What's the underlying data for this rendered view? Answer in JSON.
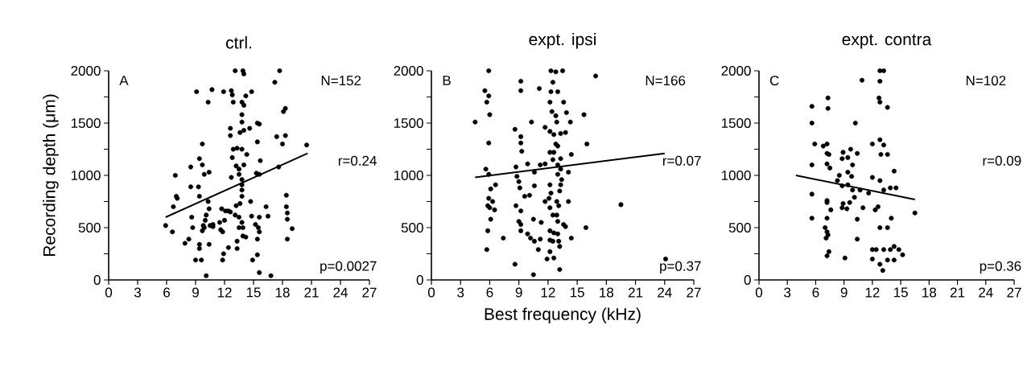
{
  "chart_data": [
    {
      "type": "scatter",
      "title": "ctrl.",
      "ylabel": "Recording depth (μm)",
      "xlim": [
        0,
        27
      ],
      "ylim": [
        0,
        2000
      ],
      "xticks": [
        0,
        3,
        6,
        9,
        12,
        15,
        18,
        21,
        24,
        27
      ],
      "yticks": [
        0,
        {
          "value": 250,
          "label": null
        },
        500,
        {
          "value": 750,
          "label": null
        },
        1000,
        {
          "value": 1250,
          "label": null
        },
        1500,
        {
          "value": 1750,
          "label": null
        },
        2000
      ],
      "marker": "circle",
      "annotations": [
        "A",
        "N=152",
        "r=0.24",
        "p=0.0027"
      ],
      "series": [
        {
          "color": "#000000",
          "x": [
            13.1,
            13.9,
            14.0,
            17.7,
            17.2,
            9.1,
            10.7,
            11.9,
            12.7,
            12.8,
            14.8,
            10.3,
            12.9,
            13.8,
            14.0,
            14.2,
            18.1,
            18.3,
            13.8,
            13.8,
            12.6,
            12.6,
            13.6,
            14.0,
            14.6,
            15.4,
            15.6,
            17.4,
            18.3,
            18.0,
            15.4,
            9.7,
            20.5,
            12.9,
            13.3,
            13.8,
            12.8,
            14.3,
            9.4,
            9.7,
            8.5,
            13.2,
            14.0,
            13.5,
            15.7,
            17.6,
            15.3,
            15.6,
            6.9,
            9.9,
            10.4,
            12.7,
            13.5,
            13.8,
            13.8,
            13.8,
            8.5,
            9.3,
            9.4,
            7.0,
            7.1,
            6.7,
            10.3,
            10.4,
            10.1,
            10.0,
            9.8,
            9.7,
            13.8,
            13.6,
            13.2,
            14.7,
            11.7,
            12.1,
            12.6,
            13.1,
            13.5,
            13.8,
            13.5,
            13.9,
            16.3,
            14.8,
            15.6,
            16.5,
            18.4,
            18.4,
            18.5,
            18.5,
            5.9,
            6.6,
            8.6,
            8.7,
            10.5,
            10.8,
            11.6,
            11.8,
            11.5,
            12.0,
            15.2,
            15.5,
            15.6,
            19.0,
            18.5,
            14.2,
            13.9,
            13.3,
            13.3,
            15.4,
            9.4,
            9.4,
            10.4,
            7.9,
            8.3,
            9.0,
            9.6,
            11.8,
            11.9,
            12.4,
            14.9,
            15.4,
            10.1,
            15.6,
            16.8,
            10.8,
            9.9,
            12.4
          ],
          "values": [
            2000,
            2000,
            1970,
            2000,
            1890,
            1800,
            1820,
            1800,
            1810,
            1770,
            1800,
            1700,
            1700,
            1700,
            1670,
            1760,
            1610,
            1640,
            1580,
            1510,
            1450,
            1380,
            1410,
            1430,
            1450,
            1500,
            1490,
            1370,
            1380,
            1300,
            1320,
            1300,
            1290,
            1250,
            1260,
            1250,
            1170,
            1200,
            1160,
            1100,
            1080,
            1090,
            1100,
            1060,
            1140,
            1080,
            1020,
            1010,
            1000,
            1010,
            1030,
            980,
            1010,
            960,
            910,
            860,
            890,
            890,
            800,
            800,
            780,
            700,
            750,
            680,
            620,
            570,
            520,
            470,
            800,
            730,
            710,
            750,
            680,
            660,
            650,
            620,
            600,
            550,
            500,
            500,
            700,
            610,
            600,
            610,
            810,
            700,
            640,
            580,
            520,
            460,
            600,
            500,
            520,
            510,
            480,
            460,
            550,
            570,
            530,
            500,
            460,
            490,
            390,
            410,
            420,
            370,
            300,
            390,
            340,
            300,
            340,
            350,
            390,
            190,
            190,
            190,
            250,
            310,
            190,
            240,
            40,
            70,
            40,
            530,
            500,
            660
          ]
        },
        {
          "type": "line",
          "color": "#000000",
          "line_style": "solid",
          "marker": "none",
          "x": [
            5.9,
            20.6
          ],
          "values": [
            600,
            1210
          ]
        }
      ]
    },
    {
      "type": "scatter",
      "title": "expt. ipsi",
      "xlabel": "Best frequency (kHz)",
      "xlim": [
        0,
        27
      ],
      "ylim": [
        0,
        2000
      ],
      "xticks": [
        0,
        3,
        6,
        9,
        12,
        15,
        18,
        21,
        24,
        27
      ],
      "yticks": [
        0,
        {
          "value": 250,
          "label": null
        },
        500,
        {
          "value": 750,
          "label": null
        },
        1000,
        {
          "value": 1250,
          "label": null
        },
        1500,
        {
          "value": 1750,
          "label": null
        },
        2000
      ],
      "marker": "circle",
      "annotations": [
        "B",
        "N=166",
        "r=0.07",
        "p=0.37"
      ],
      "series": [
        {
          "color": "#000000",
          "x": [
            5.9,
            4.5,
            5.5,
            5.9,
            5.7,
            6.0,
            5.9,
            5.6,
            5.9,
            6.6,
            6.1,
            5.9,
            6.3,
            5.8,
            6.0,
            6.5,
            6.1,
            5.8,
            5.7,
            7.4,
            8.6,
            10.5,
            9.2,
            9.2,
            11.1,
            10.3,
            8.6,
            9.2,
            9.2,
            9.3,
            9.9,
            8.7,
            8.8,
            9.0,
            9.1,
            9.6,
            10.1,
            10.6,
            8.7,
            9.2,
            9.0,
            9.2,
            9.2,
            9.9,
            10.2,
            10.6,
            10.5,
            11.3,
            11.0,
            11.2,
            10.6,
            11.2,
            11.7,
            12.3,
            12.8,
            13.5,
            12.5,
            12.3,
            13.0,
            12.2,
            13.6,
            12.4,
            12.8,
            13.9,
            12.9,
            14.3,
            11.7,
            12.2,
            12.6,
            13.3,
            13.8,
            12.8,
            13.0,
            12.2,
            12.6,
            14.4,
            12.5,
            13.3,
            13.0,
            13.3,
            14.1,
            13.0,
            13.4,
            13.3,
            12.2,
            13.2,
            12.3,
            11.7,
            12.1,
            12.9,
            13.1,
            12.2,
            14.1,
            12.9,
            12.5,
            13.0,
            12.2,
            12.6,
            13.8,
            13.6,
            13.0,
            12.2,
            12.5,
            13.1,
            13.2,
            12.2,
            11.9,
            12.6,
            13.2,
            14.4,
            15.9,
            16.0,
            15.7,
            16.9,
            19.5,
            24.1
          ],
          "values": [
            2000,
            1510,
            1810,
            1760,
            1700,
            1580,
            1310,
            1060,
            1010,
            910,
            870,
            780,
            750,
            710,
            690,
            670,
            580,
            470,
            290,
            400,
            150,
            50,
            1900,
            1810,
            1830,
            1510,
            1440,
            1370,
            1310,
            1230,
            1110,
            1080,
            990,
            940,
            880,
            800,
            810,
            900,
            710,
            660,
            560,
            530,
            470,
            440,
            400,
            370,
            580,
            550,
            290,
            390,
            1030,
            1100,
            1110,
            2000,
            1990,
            2000,
            1890,
            1800,
            1800,
            1700,
            1700,
            1610,
            1570,
            1600,
            1510,
            1510,
            1460,
            1420,
            1390,
            1400,
            1410,
            1300,
            1280,
            1220,
            1220,
            1200,
            1150,
            1160,
            1100,
            1060,
            1030,
            1010,
            960,
            910,
            910,
            850,
            830,
            750,
            780,
            750,
            710,
            690,
            750,
            620,
            620,
            560,
            470,
            450,
            510,
            530,
            440,
            380,
            370,
            370,
            320,
            270,
            200,
            210,
            100,
            400,
            500,
            1300,
            1580,
            1950,
            720,
            200
          ]
        },
        {
          "type": "line",
          "color": "#000000",
          "line_style": "solid",
          "marker": "none",
          "x": [
            4.5,
            24
          ],
          "values": [
            980,
            1210
          ]
        }
      ]
    },
    {
      "type": "scatter",
      "title": "expt. contra",
      "xlim": [
        0,
        27
      ],
      "ylim": [
        0,
        2000
      ],
      "xticks": [
        0,
        3,
        6,
        9,
        12,
        15,
        18,
        21,
        24,
        27
      ],
      "yticks": [
        0,
        {
          "value": 250,
          "label": null
        },
        500,
        {
          "value": 750,
          "label": null
        },
        1000,
        {
          "value": 1250,
          "label": null
        },
        1500,
        {
          "value": 1750,
          "label": null
        },
        2000
      ],
      "marker": "circle",
      "annotations": [
        "C",
        "N=102",
        "r=0.09",
        "p=0.36"
      ],
      "series": [
        {
          "color": "#000000",
          "x": [
            12.8,
            13.2,
            10.9,
            12.8,
            7.3,
            12.7,
            12.8,
            5.6,
            7.3,
            13.6,
            5.6,
            10.2,
            5.9,
            6.8,
            7.2,
            12.0,
            12.8,
            13.2,
            8.9,
            9.7,
            10.4,
            7.2,
            7.4,
            8.8,
            9.4,
            12.9,
            13.6,
            5.6,
            7.2,
            7.5,
            9.9,
            14.3,
            9.4,
            8.5,
            9.8,
            12.0,
            12.8,
            8.3,
            8.8,
            9.4,
            9.9,
            10.7,
            11.6,
            13.2,
            13.9,
            14.5,
            5.6,
            10.1,
            8.9,
            9.6,
            7.2,
            7.2,
            8.8,
            9.3,
            7.6,
            11.0,
            12.3,
            12.6,
            16.5,
            5.6,
            7.2,
            10.4,
            14.0,
            7.0,
            7.2,
            7.3,
            7.1,
            10.4,
            12.8,
            13.6,
            7.2,
            7.4,
            9.1,
            12.0,
            12.4,
            13.2,
            13.9,
            14.3,
            14.8,
            15.2,
            12.0,
            12.8,
            13.6,
            14.3,
            13.1
          ],
          "values": [
            2000,
            2000,
            1910,
            1900,
            1740,
            1740,
            1700,
            1660,
            1640,
            1650,
            1500,
            1500,
            1300,
            1280,
            1300,
            1300,
            1340,
            1290,
            1220,
            1250,
            1210,
            1210,
            1200,
            1160,
            1170,
            1200,
            1200,
            1100,
            1110,
            1070,
            1100,
            1040,
            1030,
            1000,
            990,
            980,
            950,
            950,
            900,
            910,
            860,
            860,
            830,
            860,
            880,
            880,
            820,
            790,
            730,
            740,
            760,
            740,
            690,
            680,
            670,
            690,
            670,
            700,
            640,
            590,
            590,
            580,
            590,
            500,
            460,
            430,
            400,
            390,
            500,
            500,
            230,
            270,
            210,
            290,
            290,
            290,
            290,
            320,
            290,
            240,
            200,
            150,
            190,
            190,
            90
          ]
        },
        {
          "type": "line",
          "color": "#000000",
          "line_style": "solid",
          "marker": "none",
          "x": [
            3.9,
            16.5
          ],
          "values": [
            1000,
            770
          ]
        }
      ]
    }
  ]
}
